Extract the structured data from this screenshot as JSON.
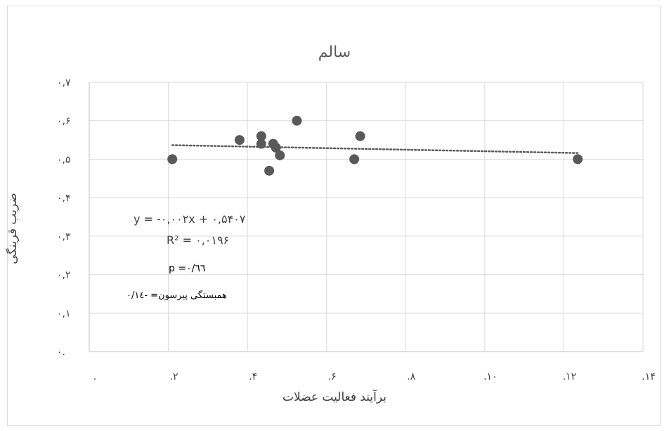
{
  "chart_data": {
    "type": "scatter",
    "title": "سالم",
    "xlabel": "برآیند فعالیت عضلات",
    "ylabel": "ضریب قرینگی",
    "xlim": [
      0,
      14
    ],
    "ylim": [
      0,
      0.7
    ],
    "x_ticks": [
      0,
      2,
      4,
      6,
      8,
      10,
      12,
      14
    ],
    "x_tick_labels": [
      ".",
      ".۲",
      ".۴",
      ".۶",
      ".۸",
      ".۱۰",
      ".۱۲",
      ".۱۴"
    ],
    "y_ticks": [
      0,
      0.1,
      0.2,
      0.3,
      0.4,
      0.5,
      0.6,
      0.7
    ],
    "y_tick_labels": [
      "۰.",
      "۰,۱",
      "۰,۲",
      "۰,۳",
      "۰,۴",
      "۰,۵",
      "۰,۶",
      "۰,۷"
    ],
    "grid": true,
    "series": [
      {
        "points": [
          {
            "x": 2.1,
            "y": 0.5
          },
          {
            "x": 3.8,
            "y": 0.55
          },
          {
            "x": 4.35,
            "y": 0.54
          },
          {
            "x": 4.35,
            "y": 0.56
          },
          {
            "x": 4.55,
            "y": 0.47
          },
          {
            "x": 4.65,
            "y": 0.54
          },
          {
            "x": 4.72,
            "y": 0.53
          },
          {
            "x": 4.82,
            "y": 0.51
          },
          {
            "x": 5.25,
            "y": 0.6
          },
          {
            "x": 6.7,
            "y": 0.5
          },
          {
            "x": 6.85,
            "y": 0.56
          },
          {
            "x": 12.35,
            "y": 0.5
          }
        ],
        "color": "#595959"
      }
    ],
    "trendline": {
      "slope": -0.002,
      "intercept": 0.5407,
      "x_range": [
        2.1,
        12.35
      ],
      "style": "dotted"
    },
    "annotations": {
      "equation": "y = -۰,۰۰۲x + ۰,۵۴۰۷",
      "r2": "R² = ۰,۰۱۹۶",
      "p_value": "p =۰/٦٦",
      "pearson": "همبستگی پیرسون= -۰/۱٤"
    }
  }
}
